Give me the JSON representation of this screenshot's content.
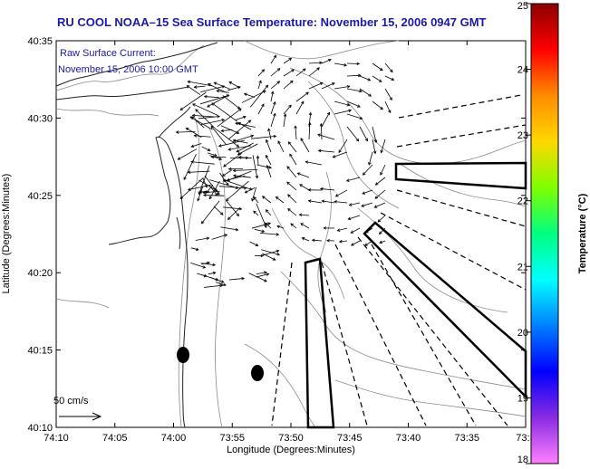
{
  "title": "RU COOL  NOAA–15  Sea Surface Temperature:  November 15, 2006 0947 GMT",
  "annotation": {
    "line1": "Raw Surface Current:",
    "line2": "November 15, 2006 10:00 GMT"
  },
  "axes": {
    "xlabel": "Longitude (Degrees:Minutes)",
    "ylabel": "Latitude (Degrees:Minutes)",
    "x_ticks": [
      "74:10",
      "74:05",
      "74:00",
      "73:55",
      "73:50",
      "73:45",
      "73:40",
      "73:35",
      "73:3"
    ],
    "y_ticks": [
      "40:35",
      "40:30",
      "40:25",
      "40:20",
      "40:15",
      "40:10"
    ]
  },
  "scale": {
    "label": "50 cm/s"
  },
  "colorbar": {
    "label": "Temperature (°C)",
    "ticks": [
      "25",
      "24",
      "23",
      "22",
      "21",
      "20",
      "19",
      "18"
    ],
    "colors": [
      "#8b0000",
      "#ff0000",
      "#ff8c00",
      "#ffd700",
      "#7fff00",
      "#00ff80",
      "#00ffff",
      "#0080ff",
      "#0000ff",
      "#8a2be2",
      "#ff80ff"
    ]
  }
}
